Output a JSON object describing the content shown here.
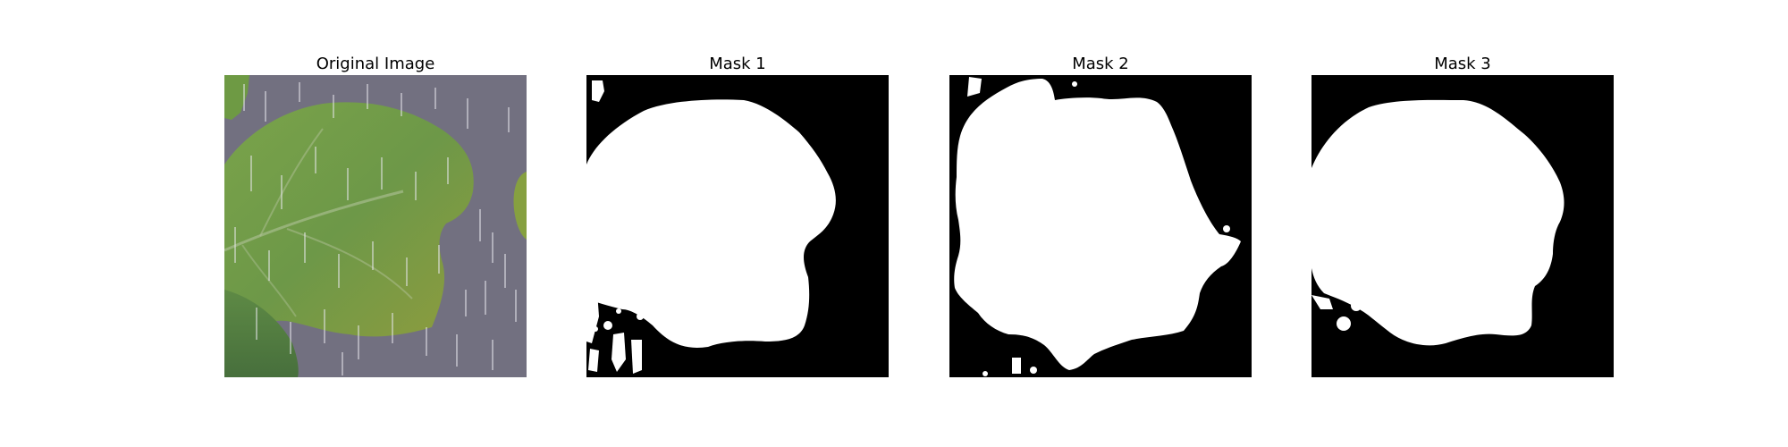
{
  "figure": {
    "panels": [
      {
        "title": "Original Image",
        "kind": "photo"
      },
      {
        "title": "Mask 1",
        "kind": "mask"
      },
      {
        "title": "Mask 2",
        "kind": "mask"
      },
      {
        "title": "Mask 3",
        "kind": "mask"
      }
    ]
  },
  "colors": {
    "background": "#ffffff",
    "mask_background": "#000000",
    "mask_foreground": "#ffffff",
    "photo_background": "#767383",
    "leaf_green": "#6f9a45",
    "leaf_dark": "#4e7c3d",
    "leaf_yellow": "#a5a23e"
  }
}
